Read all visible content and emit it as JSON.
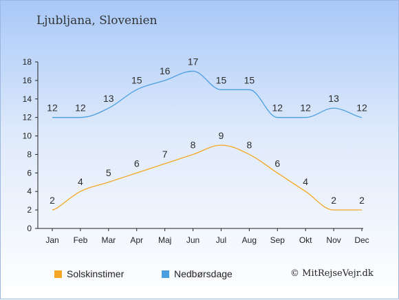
{
  "header": {
    "title": "Ljubljana, Slovenien"
  },
  "credit": "© MitRejseVejr.dk",
  "chart_data": {
    "type": "line",
    "title": "Ljubljana, Slovenien",
    "xlabel": "",
    "ylabel": "",
    "categories": [
      "Jan",
      "Feb",
      "Mar",
      "Apr",
      "Maj",
      "Jun",
      "Jul",
      "Aug",
      "Sep",
      "Okt",
      "Nov",
      "Dec"
    ],
    "ylim": [
      0,
      18
    ],
    "yticks": [
      0,
      2,
      4,
      6,
      8,
      10,
      12,
      14,
      16,
      18
    ],
    "grid": false,
    "legend_position": "bottom-left",
    "series": [
      {
        "name": "Solskinstimer",
        "color": "#f5a623",
        "values": [
          2,
          4,
          5,
          6,
          7,
          8,
          9,
          8,
          6,
          4,
          2,
          2
        ]
      },
      {
        "name": "Nedbørsdage",
        "color": "#4a9fe0",
        "values": [
          12,
          12,
          13,
          15,
          16,
          17,
          15,
          15,
          12,
          12,
          13,
          12
        ]
      }
    ]
  }
}
